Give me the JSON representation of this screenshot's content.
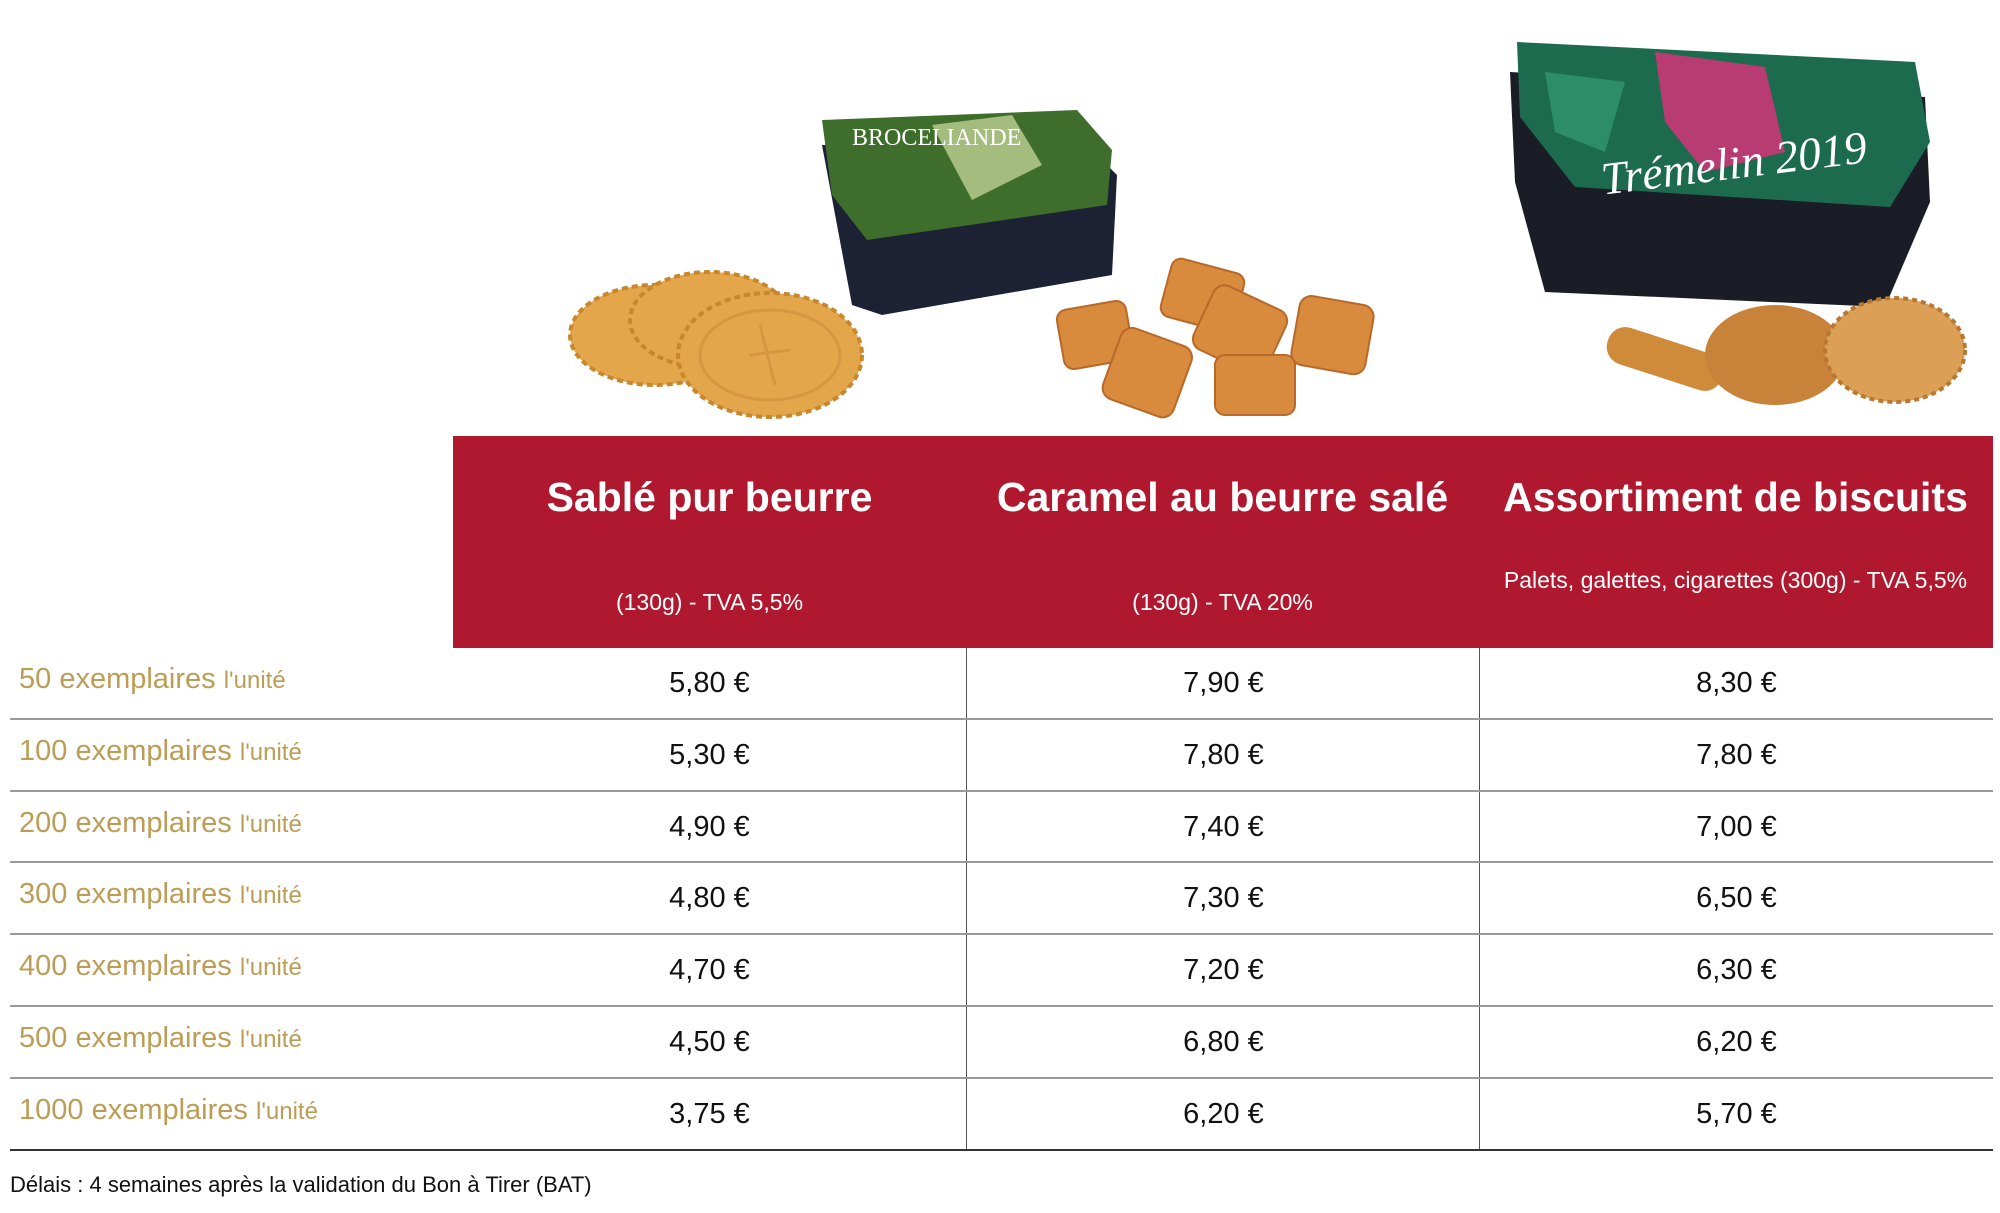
{
  "box1": {
    "label": "BROCELIANDE",
    "colors": {
      "lid": "#1c2233",
      "forest": "#3f6e2c",
      "light": "#e9f0b8"
    }
  },
  "box2": {
    "label": "Trémelin 2019",
    "colors": {
      "lid": "#1a1c26",
      "jungle": "#1d6b4e",
      "accent": "#e0307a"
    }
  },
  "images": [
    "sable-cookies-image",
    "caramel-candies-image",
    "biscuit-assortment-image"
  ],
  "header": {
    "columns": [
      {
        "title": "Sablé pur beurre",
        "subtitle": "(130g) - TVA 5,5%"
      },
      {
        "title": "Caramel au beurre salé",
        "subtitle": "(130g) - TVA 20%"
      },
      {
        "title": "Assortiment de biscuits",
        "subtitle": "Palets, galettes, cigarettes (300g) - TVA 5,5%"
      }
    ],
    "color": "#b0182f"
  },
  "rows": [
    {
      "qty": "50 exemplaires",
      "unit": "l'unité",
      "prices": [
        "5,80 €",
        "7,90 €",
        "8,30 €"
      ]
    },
    {
      "qty": "100 exemplaires",
      "unit": "l'unité",
      "prices": [
        "5,30 €",
        "7,80 €",
        "7,80 €"
      ]
    },
    {
      "qty": "200 exemplaires",
      "unit": "l'unité",
      "prices": [
        "4,90 €",
        "7,40 €",
        "7,00 €"
      ]
    },
    {
      "qty": "300 exemplaires",
      "unit": "l'unité",
      "prices": [
        "4,80 €",
        "7,30 €",
        "6,50 €"
      ]
    },
    {
      "qty": "400 exemplaires",
      "unit": "l'unité",
      "prices": [
        "4,70 €",
        "7,20 €",
        "6,30 €"
      ]
    },
    {
      "qty": "500 exemplaires",
      "unit": "l'unité",
      "prices": [
        "4,50 €",
        "6,80 €",
        "6,20 €"
      ]
    },
    {
      "qty": "1000 exemplaires",
      "unit": "l'unité",
      "prices": [
        "3,75 €",
        "6,20 €",
        "5,70 €"
      ]
    }
  ],
  "footer": {
    "note": "Délais : 4 semaines après la validation du Bon à Tirer (BAT)"
  },
  "label_color": "#bc9d55"
}
